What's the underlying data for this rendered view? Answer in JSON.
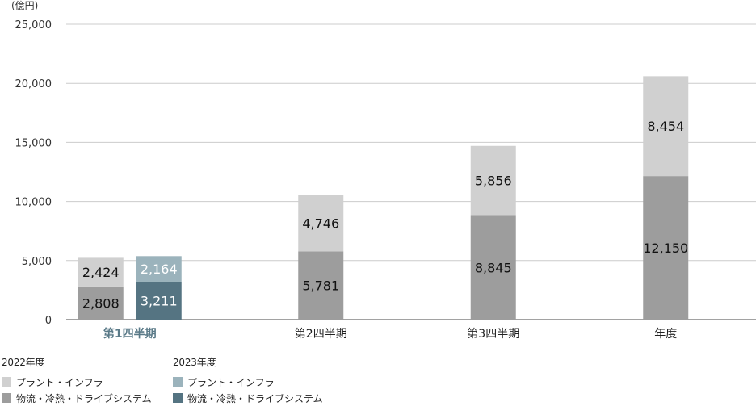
{
  "chart_data": {
    "type": "bar",
    "stacked": true,
    "unit_label": "(億円)",
    "categories": [
      "第1四半期",
      "第2四半期",
      "第3四半期",
      "年度"
    ],
    "ylim": [
      0,
      25000
    ],
    "yticks": [
      0,
      5000,
      10000,
      15000,
      20000,
      25000
    ],
    "ytick_labels": [
      "0",
      "5,000",
      "10,000",
      "15,000",
      "20,000",
      "25,000"
    ],
    "grid": true,
    "highlight_category": "第1四半期",
    "highlight_color": "#5a7a88",
    "groups": [
      {
        "name": "2022年度",
        "series": [
          {
            "name": "物流・冷熱・ドライブシステム",
            "color": "#9d9d9d",
            "values": [
              2808,
              5781,
              8845,
              12150
            ],
            "labels": [
              "2,808",
              "5,781",
              "8,845",
              "12,150"
            ],
            "label_color": "#111111"
          },
          {
            "name": "プラント・インフラ",
            "color": "#d0d0d0",
            "values": [
              2424,
              4746,
              5856,
              8454
            ],
            "labels": [
              "2,424",
              "4,746",
              "5,856",
              "8,454"
            ],
            "label_color": "#111111"
          }
        ]
      },
      {
        "name": "2023年度",
        "series": [
          {
            "name": "物流・冷熱・ドライブシステム",
            "color": "#557482",
            "values": [
              3211,
              null,
              null,
              null
            ],
            "labels": [
              "3,211",
              "",
              "",
              ""
            ],
            "label_color": "#ffffff"
          },
          {
            "name": "プラント・インフラ",
            "color": "#9bb3bc",
            "values": [
              2164,
              null,
              null,
              null
            ],
            "labels": [
              "2,164",
              "",
              "",
              ""
            ],
            "label_color": "#ffffff"
          }
        ]
      }
    ]
  },
  "legend": {
    "group1_title": "2022年度",
    "group1_items": [
      "プラント・インフラ",
      "物流・冷熱・ドライブシステム"
    ],
    "group1_colors": [
      "#d0d0d0",
      "#9d9d9d"
    ],
    "group2_title": "2023年度",
    "group2_items": [
      "プラント・インフラ",
      "物流・冷熱・ドライブシステム"
    ],
    "group2_colors": [
      "#9bb3bc",
      "#557482"
    ]
  }
}
